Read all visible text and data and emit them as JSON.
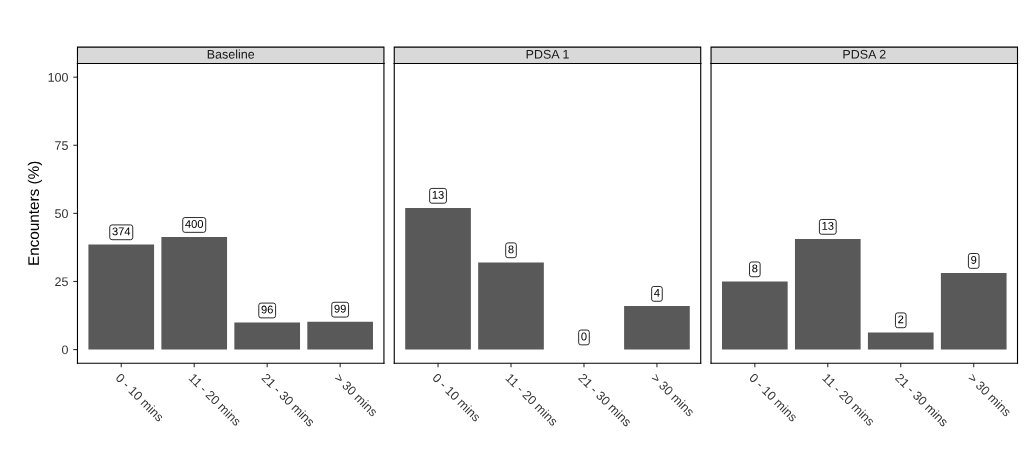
{
  "chart_data": [
    {
      "type": "bar",
      "title": "Baseline",
      "ylabel": "Encounters (%)",
      "categories": [
        "0 - 10 mins",
        "11 - 20 mins",
        "21 - 30 mins",
        "> 30 mins"
      ],
      "color": "#595959",
      "values": [
        38.6,
        41.3,
        9.9,
        10.2
      ],
      "annotations": [
        {
          "text": "374",
          "x": "0 - 10 mins",
          "y": 38.6
        },
        {
          "text": "400",
          "x": "11 - 20 mins",
          "y": 41.3
        },
        {
          "text": "96",
          "x": "21 - 30 mins",
          "y": 9.9
        },
        {
          "text": "99",
          "x": "> 30 mins",
          "y": 10.2
        }
      ],
      "ylim": [
        -5,
        105
      ],
      "yticks": [
        0,
        25,
        50,
        75,
        100
      ],
      "grid": false,
      "legend": false
    },
    {
      "type": "bar",
      "title": "PDSA 1",
      "categories": [
        "0 - 10 mins",
        "11 - 20 mins",
        "21 - 30 mins",
        "> 30 mins"
      ],
      "color": "#595959",
      "values": [
        52,
        32,
        0,
        16
      ],
      "annotations": [
        {
          "text": "13",
          "x": "0 - 10 mins",
          "y": 52
        },
        {
          "text": "8",
          "x": "11 - 20 mins",
          "y": 32
        },
        {
          "text": "0",
          "x": "21 - 30 mins",
          "y": 0
        },
        {
          "text": "4",
          "x": "> 30 mins",
          "y": 16
        }
      ],
      "ylim": [
        -5,
        105
      ],
      "yticks": [
        0,
        25,
        50,
        75,
        100
      ],
      "tick_labels": "x",
      "grid": false,
      "legend": false
    },
    {
      "type": "bar",
      "title": "PDSA 2",
      "categories": [
        "0 - 10 mins",
        "11 - 20 mins",
        "21 - 30 mins",
        "> 30 mins"
      ],
      "color": "#595959",
      "values": [
        25,
        40.6,
        6.3,
        28.1
      ],
      "annotations": [
        {
          "text": "8",
          "x": "0 - 10 mins",
          "y": 25
        },
        {
          "text": "13",
          "x": "11 - 20 mins",
          "y": 40.6
        },
        {
          "text": "2",
          "x": "21 - 30 mins",
          "y": 6.3
        },
        {
          "text": "9",
          "x": "> 30 mins",
          "y": 28.1
        }
      ],
      "ylim": [
        -5,
        105
      ],
      "yticks": [
        0,
        25,
        50,
        75,
        100
      ],
      "tick_labels": "x",
      "grid": false,
      "legend": false
    }
  ]
}
